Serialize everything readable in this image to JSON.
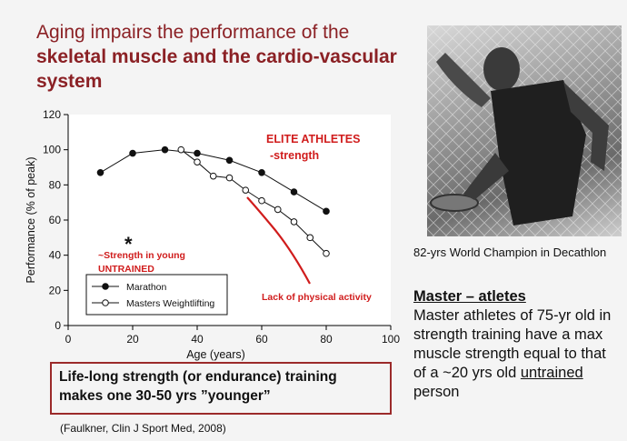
{
  "title": {
    "part1": "Aging impairs the performance of the ",
    "bold": "skeletal muscle and the cardio-vascular system"
  },
  "chart_data": {
    "type": "line",
    "ylabel": "Performance (% of peak)",
    "xlabel": "Age (years)",
    "xlim": [
      0,
      100
    ],
    "ylim": [
      0,
      120
    ],
    "xticks": [
      0,
      20,
      40,
      60,
      80,
      100
    ],
    "yticks": [
      0,
      20,
      40,
      60,
      80,
      100,
      120
    ],
    "legend_position": "bottom-left",
    "series": [
      {
        "name": "Marathon",
        "marker": "filled-circle",
        "x": [
          10,
          20,
          30,
          40,
          50,
          60,
          70,
          80
        ],
        "y": [
          87,
          98,
          100,
          98,
          94,
          87,
          76,
          65
        ]
      },
      {
        "name": "Masters Weightlifting",
        "marker": "open-circle",
        "x": [
          35,
          40,
          45,
          50,
          55,
          60,
          65,
          70,
          75,
          80
        ],
        "y": [
          100,
          93,
          85,
          84,
          77,
          71,
          66,
          59,
          50,
          41
        ]
      }
    ],
    "annotations": {
      "elite_line1": "ELITE ATHLETES",
      "elite_line2": "-strength",
      "young_star": "*",
      "young_line1": "~Strength in young",
      "young_line2": "UNTRAINED",
      "inactivity": "Lack of physical activity"
    }
  },
  "photo_caption": "82-yrs World Champion in Decathlon",
  "master": {
    "heading": "Master – atletes",
    "text_main": "Master athletes of 75-yr old in strength training have a max muscle strength equal to that of a ~20 yrs old ",
    "text_underlined": "untrained",
    "text_end": " person"
  },
  "box": {
    "line1": "Life-long strength (or endurance) training",
    "line2": "makes one 30-50 yrs ”younger”"
  },
  "citation": "(Faulkner, Clin J Sport Med, 2008)",
  "colors": {
    "accent_red": "#d01c1c",
    "title_red": "#8b2125",
    "box_border": "#9b2a2a"
  }
}
